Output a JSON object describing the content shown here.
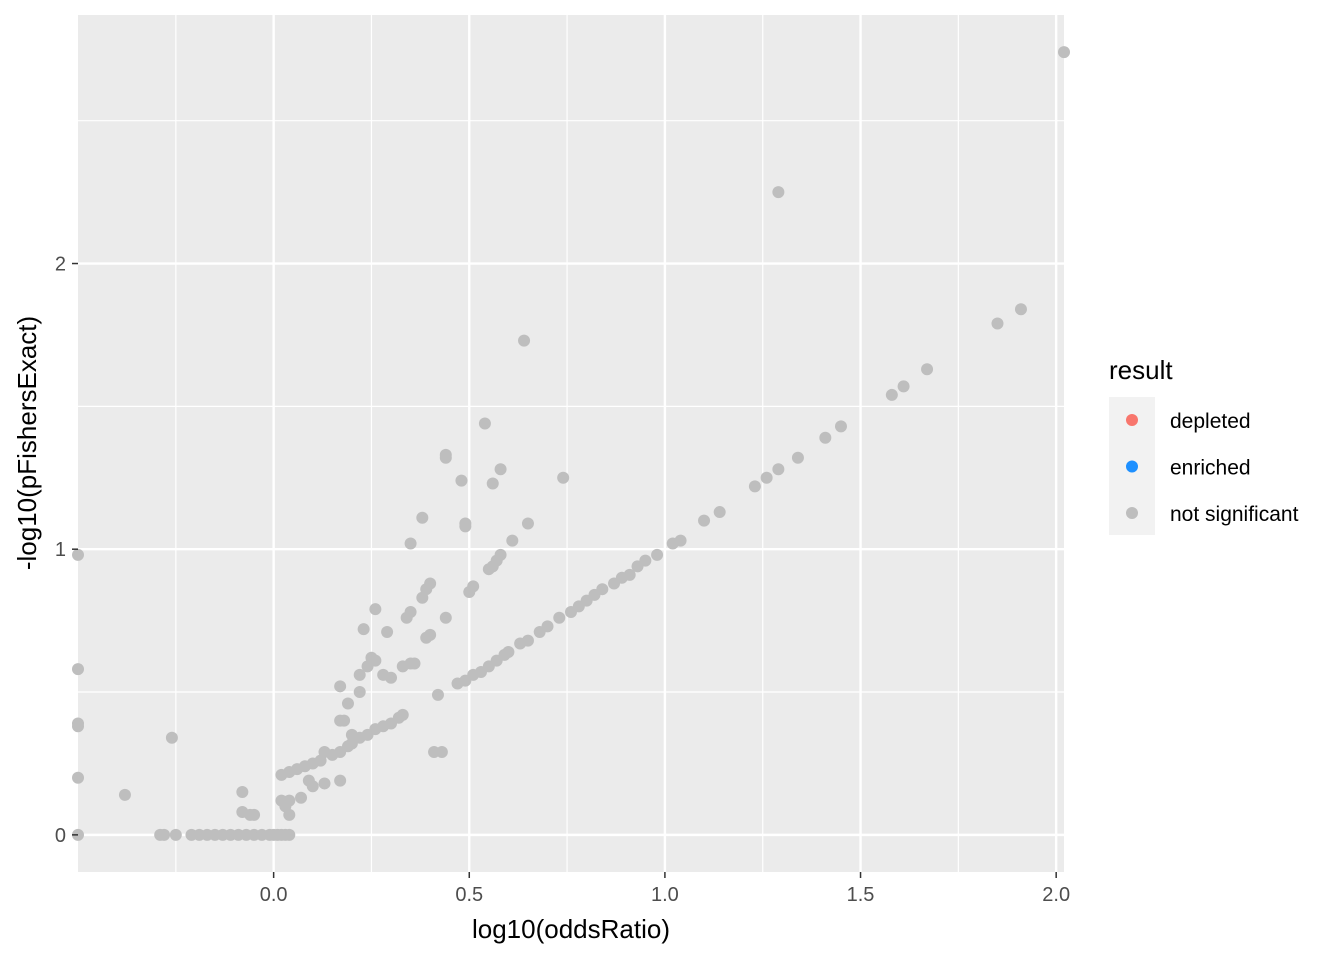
{
  "chart_data": {
    "type": "scatter",
    "title": "",
    "xlabel": "log10(oddsRatio)",
    "ylabel": "-log10(pFishersExact)",
    "xlim": [
      -0.5,
      2.02
    ],
    "ylim": [
      -0.13,
      2.87
    ],
    "x_ticks": [
      0.0,
      0.5,
      1.0,
      1.5,
      2.0
    ],
    "x_tick_labels": [
      "0.0",
      "0.5",
      "1.0",
      "1.5",
      "2.0"
    ],
    "y_ticks": [
      0,
      1,
      2
    ],
    "y_tick_labels": [
      "0",
      "1",
      "2"
    ],
    "grid": true,
    "legend": {
      "title": "result",
      "position": "right",
      "entries": [
        {
          "label": "depleted",
          "color": "#F8766D"
        },
        {
          "label": "enriched",
          "color": "#1E90FF"
        },
        {
          "label": "not significant",
          "color": "#BEBEBE"
        }
      ]
    },
    "colors": {
      "panel_background": "#EBEBEB",
      "grid_line": "#FFFFFF",
      "point": "#BEBEBE",
      "depleted": "#F8766D",
      "enriched": "#1E90FF"
    },
    "series": [
      {
        "name": "not significant",
        "points": [
          [
            -0.5,
            0.98
          ],
          [
            -0.5,
            0.58
          ],
          [
            -0.5,
            0.39
          ],
          [
            -0.5,
            0.38
          ],
          [
            -0.5,
            0.2
          ],
          [
            -0.5,
            0.0
          ],
          [
            -0.38,
            0.14
          ],
          [
            -0.26,
            0.34
          ],
          [
            -0.29,
            0.0
          ],
          [
            -0.28,
            0.0
          ],
          [
            -0.25,
            0.0
          ],
          [
            -0.21,
            0.0
          ],
          [
            -0.19,
            0.0
          ],
          [
            -0.17,
            0.0
          ],
          [
            -0.15,
            0.0
          ],
          [
            -0.13,
            0.0
          ],
          [
            -0.11,
            0.0
          ],
          [
            -0.09,
            0.0
          ],
          [
            -0.07,
            0.0
          ],
          [
            -0.05,
            0.0
          ],
          [
            -0.03,
            0.0
          ],
          [
            -0.01,
            0.0
          ],
          [
            0.0,
            0.0
          ],
          [
            0.01,
            0.0
          ],
          [
            0.02,
            0.0
          ],
          [
            0.03,
            0.0
          ],
          [
            0.04,
            0.0
          ],
          [
            -0.08,
            0.15
          ],
          [
            -0.08,
            0.08
          ],
          [
            -0.06,
            0.07
          ],
          [
            -0.05,
            0.07
          ],
          [
            0.02,
            0.12
          ],
          [
            0.03,
            0.1
          ],
          [
            0.04,
            0.12
          ],
          [
            0.04,
            0.07
          ],
          [
            0.07,
            0.13
          ],
          [
            0.09,
            0.19
          ],
          [
            0.1,
            0.17
          ],
          [
            0.13,
            0.18
          ],
          [
            0.17,
            0.19
          ],
          [
            0.02,
            0.21
          ],
          [
            0.04,
            0.22
          ],
          [
            0.06,
            0.23
          ],
          [
            0.08,
            0.24
          ],
          [
            0.1,
            0.25
          ],
          [
            0.12,
            0.26
          ],
          [
            0.13,
            0.29
          ],
          [
            0.15,
            0.28
          ],
          [
            0.17,
            0.29
          ],
          [
            0.19,
            0.31
          ],
          [
            0.2,
            0.32
          ],
          [
            0.22,
            0.34
          ],
          [
            0.24,
            0.35
          ],
          [
            0.26,
            0.37
          ],
          [
            0.28,
            0.38
          ],
          [
            0.3,
            0.39
          ],
          [
            0.32,
            0.41
          ],
          [
            0.33,
            0.42
          ],
          [
            0.17,
            0.4
          ],
          [
            0.18,
            0.4
          ],
          [
            0.19,
            0.46
          ],
          [
            0.2,
            0.35
          ],
          [
            0.22,
            0.5
          ],
          [
            0.22,
            0.56
          ],
          [
            0.23,
            0.72
          ],
          [
            0.24,
            0.59
          ],
          [
            0.25,
            0.62
          ],
          [
            0.26,
            0.61
          ],
          [
            0.26,
            0.79
          ],
          [
            0.28,
            0.56
          ],
          [
            0.29,
            0.71
          ],
          [
            0.3,
            0.55
          ],
          [
            0.17,
            0.52
          ],
          [
            0.33,
            0.59
          ],
          [
            0.34,
            0.76
          ],
          [
            0.35,
            0.6
          ],
          [
            0.35,
            0.78
          ],
          [
            0.36,
            0.6
          ],
          [
            0.38,
            0.83
          ],
          [
            0.39,
            0.69
          ],
          [
            0.39,
            0.86
          ],
          [
            0.4,
            0.7
          ],
          [
            0.4,
            0.88
          ],
          [
            0.35,
            1.02
          ],
          [
            0.38,
            1.11
          ],
          [
            0.41,
            0.29
          ],
          [
            0.43,
            0.29
          ],
          [
            0.42,
            0.49
          ],
          [
            0.44,
            0.76
          ],
          [
            0.44,
            1.33
          ],
          [
            0.44,
            1.32
          ],
          [
            0.48,
            1.24
          ],
          [
            0.49,
            1.08
          ],
          [
            0.49,
            1.09
          ],
          [
            0.5,
            0.85
          ],
          [
            0.51,
            0.87
          ],
          [
            0.54,
            1.44
          ],
          [
            0.55,
            0.93
          ],
          [
            0.56,
            0.94
          ],
          [
            0.57,
            0.96
          ],
          [
            0.58,
            0.98
          ],
          [
            0.56,
            1.23
          ],
          [
            0.58,
            1.28
          ],
          [
            0.61,
            1.03
          ],
          [
            0.64,
            1.73
          ],
          [
            0.65,
            1.09
          ],
          [
            0.74,
            1.25
          ],
          [
            0.47,
            0.53
          ],
          [
            0.49,
            0.54
          ],
          [
            0.51,
            0.56
          ],
          [
            0.53,
            0.57
          ],
          [
            0.55,
            0.59
          ],
          [
            0.57,
            0.61
          ],
          [
            0.59,
            0.63
          ],
          [
            0.6,
            0.64
          ],
          [
            0.63,
            0.67
          ],
          [
            0.65,
            0.68
          ],
          [
            0.68,
            0.71
          ],
          [
            0.7,
            0.73
          ],
          [
            0.73,
            0.76
          ],
          [
            0.76,
            0.78
          ],
          [
            0.78,
            0.8
          ],
          [
            0.8,
            0.82
          ],
          [
            0.82,
            0.84
          ],
          [
            0.84,
            0.86
          ],
          [
            0.87,
            0.88
          ],
          [
            0.89,
            0.9
          ],
          [
            0.91,
            0.91
          ],
          [
            0.93,
            0.94
          ],
          [
            0.95,
            0.96
          ],
          [
            0.98,
            0.98
          ],
          [
            1.02,
            1.02
          ],
          [
            1.04,
            1.03
          ],
          [
            1.1,
            1.1
          ],
          [
            1.14,
            1.13
          ],
          [
            1.23,
            1.22
          ],
          [
            1.26,
            1.25
          ],
          [
            1.29,
            1.28
          ],
          [
            1.34,
            1.32
          ],
          [
            1.41,
            1.39
          ],
          [
            1.45,
            1.43
          ],
          [
            1.58,
            1.54
          ],
          [
            1.61,
            1.57
          ],
          [
            1.67,
            1.63
          ],
          [
            1.85,
            1.79
          ],
          [
            1.91,
            1.84
          ],
          [
            1.29,
            2.25
          ],
          [
            2.02,
            2.74
          ]
        ]
      }
    ]
  }
}
